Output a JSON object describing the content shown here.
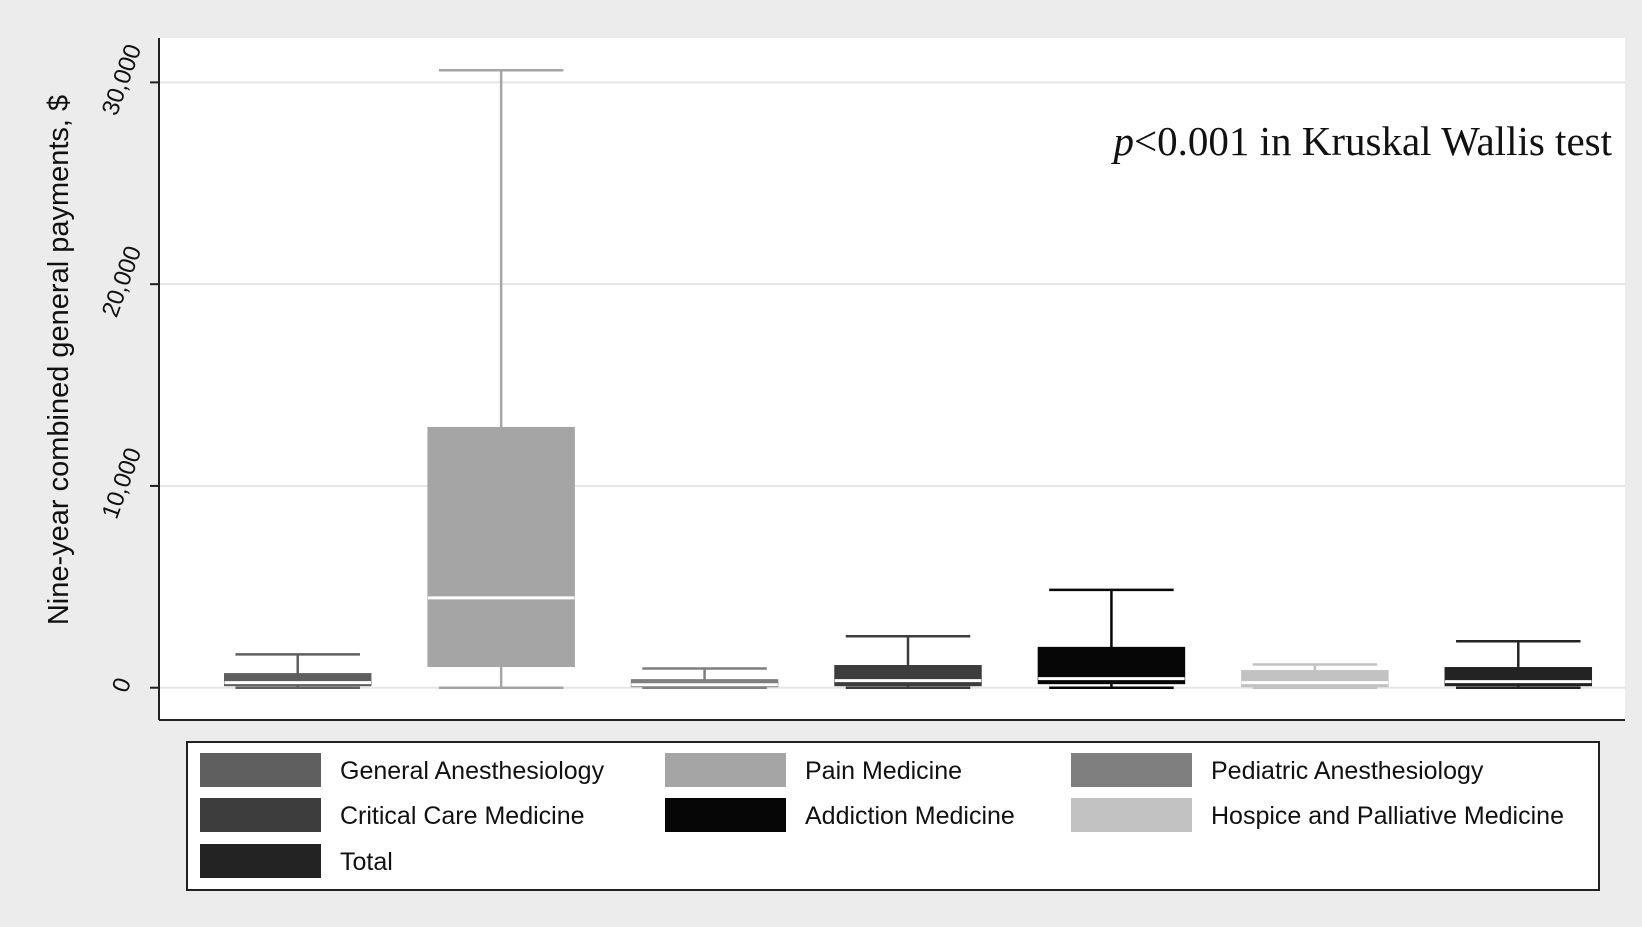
{
  "chart_data": {
    "type": "box",
    "title": "",
    "xlabel": "",
    "ylabel": "Nine-year combined general payments, $",
    "ylim": [
      -1600,
      32200
    ],
    "yticks": [
      0,
      10000,
      20000,
      30000
    ],
    "ytick_labels": [
      "0",
      "10,000",
      "20,000",
      "30,000"
    ],
    "grid": true,
    "annotation": {
      "italic": "p",
      "text": "<0.001 in Kruskal Wallis test"
    },
    "legend_position": "bottom",
    "series": [
      {
        "name": "General Anesthesiology",
        "color": "#5f5f5f",
        "median_color": "#ffffff",
        "whisker_low": 0,
        "q1": 100,
        "median": 250,
        "q3": 700,
        "whisker_high": 1650
      },
      {
        "name": "Pain Medicine",
        "color": "#a5a5a5",
        "median_color": "#ffffff",
        "whisker_low": 0,
        "q1": 1050,
        "median": 4450,
        "q3": 12900,
        "whisker_high": 30600
      },
      {
        "name": "Pediatric Anesthesiology",
        "color": "#7f7f7f",
        "median_color": "#ffffff",
        "whisker_low": 0,
        "q1": 50,
        "median": 150,
        "q3": 400,
        "whisker_high": 950
      },
      {
        "name": "Critical Care Medicine",
        "color": "#3d3d3d",
        "median_color": "#ffffff",
        "whisker_low": 0,
        "q1": 100,
        "median": 350,
        "q3": 1100,
        "whisker_high": 2550
      },
      {
        "name": "Addiction Medicine",
        "color": "#060606",
        "median_color": "#ffffff",
        "whisker_low": 0,
        "q1": 200,
        "median": 450,
        "q3": 2000,
        "whisker_high": 4850
      },
      {
        "name": "Hospice and Palliative Medicine",
        "color": "#c2c2c2",
        "median_color": "#ffffff",
        "whisker_low": 0,
        "q1": 50,
        "median": 250,
        "q3": 850,
        "whisker_high": 1150
      },
      {
        "name": "Total",
        "color": "#232323",
        "median_color": "#ffffff",
        "whisker_low": 0,
        "q1": 100,
        "median": 300,
        "q3": 1000,
        "whisker_high": 2300
      }
    ]
  }
}
